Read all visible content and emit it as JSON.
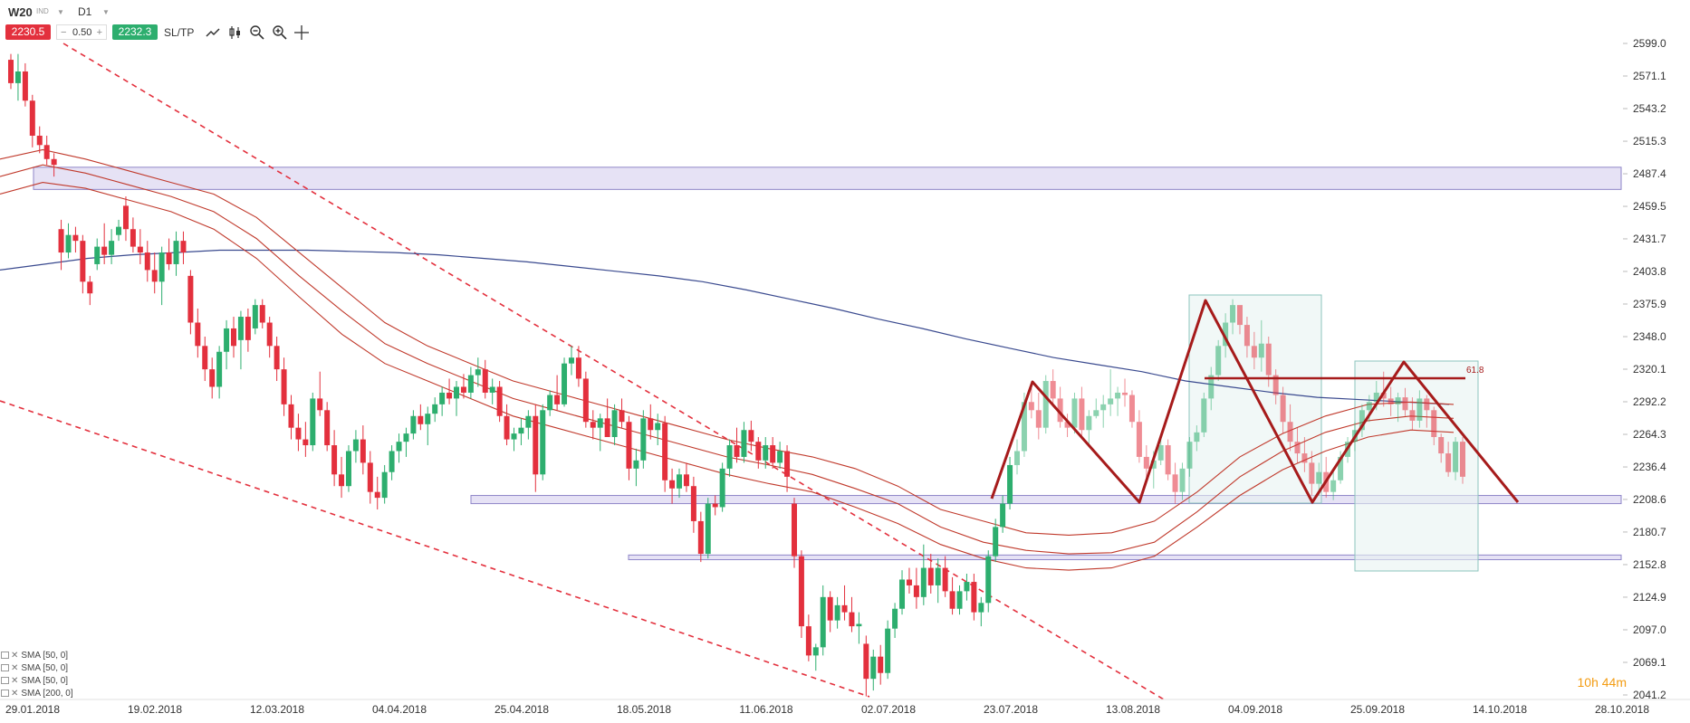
{
  "header": {
    "symbol": "W20",
    "symbol_tag": "IND",
    "timeframe": "D1",
    "sell_price": "2230.5",
    "lot_size": "0.50",
    "lot_minus": "−",
    "lot_plus": "+",
    "buy_price": "2232.3",
    "sltp_label": "SL/TP",
    "tools": [
      "line-chart-icon",
      "candle-type-icon",
      "zoom-out-icon",
      "zoom-in-icon",
      "crosshair-icon"
    ]
  },
  "indicators": [
    {
      "label": "SMA [50, 0]"
    },
    {
      "label": "SMA [50, 0]"
    },
    {
      "label": "SMA [50, 0]"
    },
    {
      "label": "SMA [200, 0]"
    }
  ],
  "timer": {
    "hours": "10h",
    "minutes": "44m"
  },
  "colors": {
    "bull": "#2dae6e",
    "bear": "#e3303d",
    "envelope": "#c0392b",
    "sma200": "#3a4a8f",
    "zone_fill": "#e6e2f5",
    "zone_border": "#8f86c8",
    "pattern": "#a61b1b",
    "box": "#8cc4be",
    "timer": "#f39c12"
  },
  "chart_data": {
    "type": "candlestick",
    "y_ticks": [
      2599.0,
      2571.1,
      2543.2,
      2515.3,
      2487.4,
      2459.5,
      2431.7,
      2403.8,
      2375.9,
      2348.0,
      2320.1,
      2292.2,
      2264.3,
      2236.4,
      2208.6,
      2180.7,
      2152.8,
      2124.9,
      2097.0,
      2069.1,
      2041.2
    ],
    "ylim": [
      2041.2,
      2599.0
    ],
    "x_labels": [
      "29.01.2018",
      "19.02.2018",
      "12.03.2018",
      "04.04.2018",
      "25.04.2018",
      "18.05.2018",
      "11.06.2018",
      "02.07.2018",
      "23.07.2018",
      "13.08.2018",
      "04.09.2018",
      "25.09.2018",
      "14.10.2018",
      "28.10.2018"
    ],
    "fib_label": "61.8",
    "support_resistance_zones": [
      {
        "low": 2474,
        "high": 2493
      },
      {
        "low": 2205,
        "high": 2212
      },
      {
        "low": 2157,
        "high": 2161
      }
    ],
    "candles_note": "daily OHLC approx, late Jan to early Oct 2018",
    "candles": [
      [
        2585,
        2590,
        2560,
        2565
      ],
      [
        2565,
        2590,
        2550,
        2575
      ],
      [
        2575,
        2582,
        2545,
        2550
      ],
      [
        2550,
        2555,
        2510,
        2520
      ],
      [
        2520,
        2528,
        2505,
        2512
      ],
      [
        2512,
        2520,
        2495,
        2500
      ],
      [
        2500,
        2505,
        2485,
        2495
      ],
      [
        2440,
        2448,
        2405,
        2420
      ],
      [
        2420,
        2445,
        2415,
        2435
      ],
      [
        2435,
        2442,
        2420,
        2430
      ],
      [
        2430,
        2435,
        2385,
        2395
      ],
      [
        2395,
        2400,
        2375,
        2385
      ],
      [
        2410,
        2432,
        2405,
        2425
      ],
      [
        2425,
        2445,
        2410,
        2418
      ],
      [
        2418,
        2440,
        2410,
        2430
      ],
      [
        2435,
        2448,
        2430,
        2442
      ],
      [
        2460,
        2468,
        2430,
        2440
      ],
      [
        2440,
        2450,
        2420,
        2425
      ],
      [
        2425,
        2440,
        2410,
        2420
      ],
      [
        2420,
        2430,
        2395,
        2405
      ],
      [
        2405,
        2420,
        2385,
        2395
      ],
      [
        2395,
        2425,
        2375,
        2420
      ],
      [
        2420,
        2432,
        2405,
        2410
      ],
      [
        2410,
        2438,
        2400,
        2430
      ],
      [
        2430,
        2438,
        2410,
        2420
      ],
      [
        2400,
        2405,
        2350,
        2360
      ],
      [
        2360,
        2372,
        2330,
        2340
      ],
      [
        2340,
        2348,
        2310,
        2320
      ],
      [
        2320,
        2330,
        2295,
        2305
      ],
      [
        2305,
        2340,
        2295,
        2335
      ],
      [
        2335,
        2362,
        2320,
        2355
      ],
      [
        2355,
        2365,
        2330,
        2340
      ],
      [
        2345,
        2370,
        2320,
        2365
      ],
      [
        2365,
        2372,
        2335,
        2345
      ],
      [
        2355,
        2380,
        2350,
        2375
      ],
      [
        2375,
        2380,
        2355,
        2360
      ],
      [
        2360,
        2365,
        2330,
        2340
      ],
      [
        2340,
        2348,
        2310,
        2320
      ],
      [
        2320,
        2330,
        2280,
        2290
      ],
      [
        2290,
        2298,
        2260,
        2270
      ],
      [
        2270,
        2282,
        2250,
        2260
      ],
      [
        2260,
        2275,
        2245,
        2255
      ],
      [
        2255,
        2300,
        2250,
        2295
      ],
      [
        2295,
        2318,
        2280,
        2285
      ],
      [
        2285,
        2292,
        2250,
        2255
      ],
      [
        2255,
        2268,
        2220,
        2230
      ],
      [
        2230,
        2245,
        2210,
        2220
      ],
      [
        2220,
        2255,
        2215,
        2250
      ],
      [
        2250,
        2268,
        2240,
        2260
      ],
      [
        2260,
        2272,
        2230,
        2240
      ],
      [
        2240,
        2250,
        2205,
        2215
      ],
      [
        2215,
        2228,
        2200,
        2210
      ],
      [
        2210,
        2238,
        2205,
        2232
      ],
      [
        2232,
        2255,
        2225,
        2250
      ],
      [
        2250,
        2265,
        2240,
        2258
      ],
      [
        2258,
        2270,
        2245,
        2265
      ],
      [
        2265,
        2285,
        2260,
        2280
      ],
      [
        2280,
        2290,
        2268,
        2273
      ],
      [
        2273,
        2288,
        2255,
        2282
      ],
      [
        2282,
        2296,
        2275,
        2290
      ],
      [
        2290,
        2305,
        2280,
        2300
      ],
      [
        2300,
        2312,
        2290,
        2295
      ],
      [
        2295,
        2310,
        2280,
        2305
      ],
      [
        2305,
        2316,
        2295,
        2300
      ],
      [
        2300,
        2322,
        2295,
        2315
      ],
      [
        2315,
        2330,
        2305,
        2320
      ],
      [
        2320,
        2328,
        2295,
        2300
      ],
      [
        2300,
        2312,
        2290,
        2305
      ],
      [
        2305,
        2310,
        2275,
        2280
      ],
      [
        2280,
        2290,
        2255,
        2260
      ],
      [
        2260,
        2270,
        2250,
        2265
      ],
      [
        2265,
        2278,
        2255,
        2270
      ],
      [
        2270,
        2285,
        2260,
        2280
      ],
      [
        2280,
        2290,
        2215,
        2230
      ],
      [
        2230,
        2290,
        2225,
        2285
      ],
      [
        2285,
        2302,
        2280,
        2298
      ],
      [
        2298,
        2315,
        2285,
        2290
      ],
      [
        2290,
        2330,
        2288,
        2325
      ],
      [
        2325,
        2340,
        2315,
        2330
      ],
      [
        2330,
        2340,
        2305,
        2312
      ],
      [
        2312,
        2318,
        2270,
        2275
      ],
      [
        2275,
        2285,
        2260,
        2270
      ],
      [
        2270,
        2282,
        2250,
        2278
      ],
      [
        2278,
        2295,
        2265,
        2262
      ],
      [
        2262,
        2290,
        2255,
        2285
      ],
      [
        2285,
        2295,
        2270,
        2275
      ],
      [
        2275,
        2280,
        2225,
        2235
      ],
      [
        2235,
        2252,
        2220,
        2242
      ],
      [
        2242,
        2285,
        2235,
        2278
      ],
      [
        2278,
        2290,
        2260,
        2268
      ],
      [
        2268,
        2282,
        2255,
        2274
      ],
      [
        2274,
        2280,
        2215,
        2225
      ],
      [
        2225,
        2235,
        2205,
        2218
      ],
      [
        2218,
        2235,
        2210,
        2230
      ],
      [
        2230,
        2240,
        2215,
        2220
      ],
      [
        2220,
        2228,
        2180,
        2190
      ],
      [
        2190,
        2198,
        2155,
        2162
      ],
      [
        2162,
        2210,
        2158,
        2205
      ],
      [
        2205,
        2212,
        2195,
        2202
      ],
      [
        2202,
        2240,
        2198,
        2235
      ],
      [
        2235,
        2260,
        2228,
        2255
      ],
      [
        2255,
        2270,
        2240,
        2245
      ],
      [
        2245,
        2275,
        2240,
        2268
      ],
      [
        2268,
        2276,
        2250,
        2258
      ],
      [
        2258,
        2262,
        2235,
        2242
      ],
      [
        2242,
        2262,
        2235,
        2255
      ],
      [
        2255,
        2262,
        2235,
        2240
      ],
      [
        2240,
        2258,
        2235,
        2250
      ],
      [
        2250,
        2255,
        2215,
        2228
      ],
      [
        2205,
        2210,
        2150,
        2160
      ],
      [
        2160,
        2165,
        2090,
        2100
      ],
      [
        2100,
        2110,
        2070,
        2075
      ],
      [
        2075,
        2085,
        2062,
        2082
      ],
      [
        2082,
        2135,
        2075,
        2125
      ],
      [
        2125,
        2130,
        2095,
        2105
      ],
      [
        2105,
        2125,
        2098,
        2118
      ],
      [
        2118,
        2135,
        2105,
        2112
      ],
      [
        2112,
        2125,
        2095,
        2100
      ],
      [
        2100,
        2112,
        2085,
        2102
      ],
      [
        2085,
        2092,
        2040,
        2055
      ],
      [
        2055,
        2080,
        2045,
        2074
      ],
      [
        2074,
        2084,
        2050,
        2060
      ],
      [
        2060,
        2105,
        2055,
        2098
      ],
      [
        2098,
        2120,
        2090,
        2115
      ],
      [
        2115,
        2148,
        2110,
        2140
      ],
      [
        2140,
        2150,
        2128,
        2135
      ],
      [
        2135,
        2150,
        2115,
        2125
      ],
      [
        2125,
        2170,
        2118,
        2150
      ],
      [
        2150,
        2162,
        2128,
        2135
      ],
      [
        2135,
        2158,
        2120,
        2150
      ],
      [
        2150,
        2160,
        2125,
        2130
      ],
      [
        2130,
        2142,
        2110,
        2115
      ],
      [
        2115,
        2135,
        2110,
        2130
      ],
      [
        2130,
        2145,
        2122,
        2138
      ],
      [
        2138,
        2145,
        2105,
        2112
      ],
      [
        2112,
        2125,
        2100,
        2120
      ],
      [
        2120,
        2165,
        2112,
        2160
      ],
      [
        2160,
        2192,
        2155,
        2185
      ],
      [
        2185,
        2212,
        2180,
        2205
      ],
      [
        2205,
        2245,
        2200,
        2238
      ],
      [
        2238,
        2260,
        2230,
        2250
      ],
      [
        2250,
        2300,
        2245,
        2292
      ],
      [
        2292,
        2304,
        2278,
        2285
      ],
      [
        2285,
        2300,
        2260,
        2270
      ],
      [
        2270,
        2315,
        2265,
        2310
      ],
      [
        2310,
        2320,
        2288,
        2295
      ],
      [
        2295,
        2305,
        2270,
        2275
      ],
      [
        2275,
        2282,
        2262,
        2270
      ],
      [
        2270,
        2300,
        2265,
        2295
      ],
      [
        2295,
        2305,
        2262,
        2268
      ],
      [
        2268,
        2285,
        2255,
        2280
      ],
      [
        2280,
        2295,
        2278,
        2285
      ],
      [
        2285,
        2298,
        2270,
        2290
      ],
      [
        2290,
        2320,
        2280,
        2295
      ],
      [
        2295,
        2305,
        2280,
        2300
      ],
      [
        2300,
        2312,
        2288,
        2298
      ],
      [
        2298,
        2302,
        2270,
        2275
      ],
      [
        2275,
        2285,
        2240,
        2245
      ],
      [
        2245,
        2255,
        2225,
        2235
      ],
      [
        2235,
        2250,
        2218,
        2242
      ],
      [
        2242,
        2262,
        2238,
        2255
      ],
      [
        2255,
        2260,
        2225,
        2230
      ],
      [
        2230,
        2240,
        2205,
        2215
      ],
      [
        2215,
        2240,
        2208,
        2235
      ],
      [
        2235,
        2262,
        2228,
        2258
      ],
      [
        2258,
        2272,
        2250,
        2266
      ],
      [
        2266,
        2300,
        2262,
        2295
      ],
      [
        2295,
        2322,
        2285,
        2315
      ],
      [
        2315,
        2345,
        2310,
        2340
      ],
      [
        2340,
        2368,
        2330,
        2360
      ],
      [
        2360,
        2380,
        2350,
        2375
      ],
      [
        2375,
        2372,
        2350,
        2358
      ],
      [
        2358,
        2365,
        2330,
        2340
      ],
      [
        2340,
        2352,
        2320,
        2330
      ],
      [
        2330,
        2362,
        2318,
        2342
      ],
      [
        2342,
        2348,
        2305,
        2315
      ],
      [
        2315,
        2320,
        2290,
        2298
      ],
      [
        2298,
        2305,
        2265,
        2275
      ],
      [
        2275,
        2290,
        2250,
        2258
      ],
      [
        2258,
        2270,
        2240,
        2248
      ],
      [
        2248,
        2262,
        2232,
        2240
      ],
      [
        2240,
        2250,
        2212,
        2222
      ],
      [
        2222,
        2240,
        2212,
        2232
      ],
      [
        2232,
        2245,
        2210,
        2215
      ],
      [
        2215,
        2232,
        2208,
        2225
      ],
      [
        2225,
        2250,
        2222,
        2245
      ],
      [
        2245,
        2262,
        2240,
        2258
      ],
      [
        2258,
        2275,
        2250,
        2268
      ],
      [
        2268,
        2290,
        2262,
        2285
      ],
      [
        2285,
        2298,
        2275,
        2292
      ],
      [
        2292,
        2310,
        2285,
        2300
      ],
      [
        2300,
        2318,
        2288,
        2295
      ],
      [
        2295,
        2305,
        2280,
        2290
      ],
      [
        2290,
        2300,
        2275,
        2296
      ],
      [
        2296,
        2304,
        2280,
        2285
      ],
      [
        2285,
        2296,
        2268,
        2276
      ],
      [
        2276,
        2302,
        2270,
        2295
      ],
      [
        2295,
        2298,
        2270,
        2285
      ],
      [
        2285,
        2288,
        2255,
        2262
      ],
      [
        2262,
        2265,
        2240,
        2248
      ],
      [
        2248,
        2258,
        2228,
        2232
      ],
      [
        2232,
        2262,
        2225,
        2258
      ],
      [
        2258,
        2262,
        2222,
        2228
      ]
    ],
    "sma200": [
      2405,
      2410,
      2415,
      2418,
      2420,
      2422,
      2422,
      2422,
      2421,
      2420,
      2418,
      2415,
      2412,
      2408,
      2404,
      2400,
      2395,
      2388,
      2380,
      2372,
      2363,
      2355,
      2346,
      2338,
      2330,
      2324,
      2318,
      2310,
      2305,
      2300,
      2296,
      2294,
      2292,
      2290
    ],
    "envelope_upper": [
      2500,
      2508,
      2500,
      2490,
      2480,
      2470,
      2450,
      2420,
      2390,
      2360,
      2340,
      2325,
      2310,
      2300,
      2290,
      2280,
      2270,
      2260,
      2252,
      2245,
      2235,
      2220,
      2200,
      2190,
      2180,
      2178,
      2180,
      2190,
      2215,
      2245,
      2265,
      2280,
      2290,
      2292,
      2290
    ],
    "envelope_mid": [
      2485,
      2495,
      2488,
      2478,
      2468,
      2455,
      2432,
      2400,
      2370,
      2342,
      2325,
      2310,
      2295,
      2285,
      2275,
      2265,
      2255,
      2245,
      2238,
      2230,
      2218,
      2205,
      2185,
      2172,
      2165,
      2162,
      2163,
      2172,
      2198,
      2228,
      2250,
      2266,
      2276,
      2280,
      2278
    ],
    "envelope_lower": [
      2470,
      2480,
      2475,
      2465,
      2455,
      2440,
      2415,
      2382,
      2350,
      2325,
      2310,
      2295,
      2280,
      2270,
      2260,
      2250,
      2240,
      2230,
      2222,
      2215,
      2202,
      2188,
      2170,
      2158,
      2150,
      2148,
      2150,
      2160,
      2185,
      2212,
      2234,
      2250,
      2262,
      2268,
      2266
    ]
  }
}
